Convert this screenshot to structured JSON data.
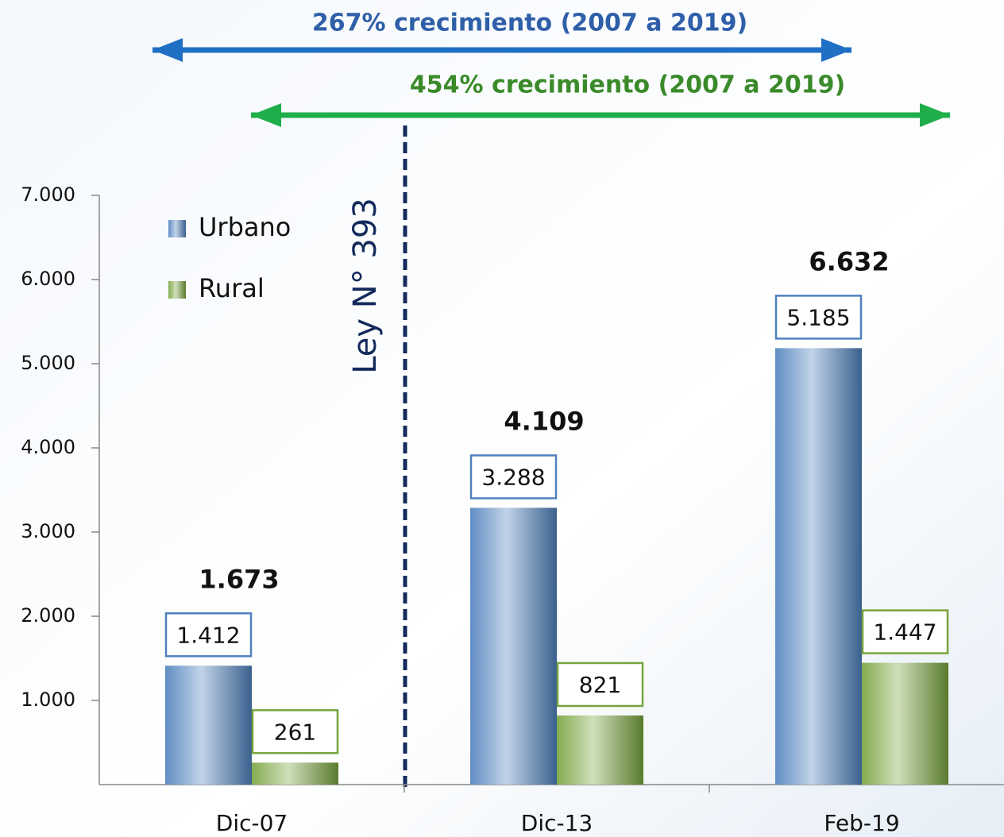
{
  "chart_data": {
    "type": "bar",
    "categories": [
      "Dic-07",
      "Dic-13",
      "Feb-19"
    ],
    "series": [
      {
        "name": "Urbano",
        "color": "#4f81bd",
        "values": [
          1412,
          3288,
          5185
        ],
        "value_labels": [
          "1.412",
          "3.288",
          "5.185"
        ]
      },
      {
        "name": "Rural",
        "color": "#77a33c",
        "values": [
          261,
          821,
          1447
        ],
        "value_labels": [
          "261",
          "821",
          "1.447"
        ]
      }
    ],
    "totals": {
      "values": [
        1673,
        4109,
        6632
      ],
      "value_labels": [
        "1.673",
        "4.109",
        "6.632"
      ]
    },
    "ylim": [
      0,
      7000
    ],
    "yticks": [
      {
        "value": 1000,
        "label": "1.000"
      },
      {
        "value": 2000,
        "label": "2.000"
      },
      {
        "value": 3000,
        "label": "3.000"
      },
      {
        "value": 4000,
        "label": "4.000"
      },
      {
        "value": 5000,
        "label": "5.000"
      },
      {
        "value": 6000,
        "label": "6.000"
      },
      {
        "value": 7000,
        "label": "7.000"
      }
    ],
    "annotations": [
      "267% crecimiento (2007 a 2019)",
      "454% crecimiento (2007 a 2019)",
      "Ley N° 393"
    ],
    "legend": "upper left"
  }
}
